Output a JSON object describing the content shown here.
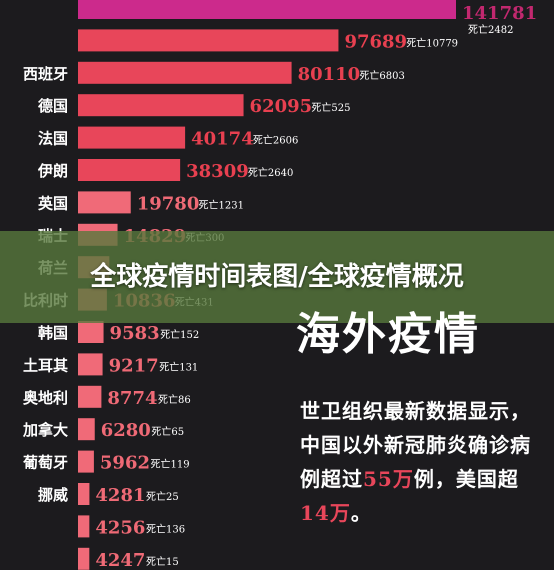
{
  "chart_data": {
    "type": "bar",
    "orientation": "horizontal",
    "categories": [
      "",
      "",
      "西班牙",
      "德国",
      "法国",
      "伊朗",
      "英国",
      "瑞士",
      "荷兰",
      "比利时",
      "韩国",
      "土耳其",
      "奥地利",
      "加拿大",
      "葡萄牙",
      "挪威",
      "",
      ""
    ],
    "values": [
      141781,
      97689,
      80110,
      62095,
      40174,
      38309,
      19780,
      14829,
      11750,
      10836,
      9583,
      9217,
      8774,
      6280,
      5962,
      4281,
      4256,
      4247
    ],
    "value_labels": [
      "141781",
      "97689",
      "80110",
      "62095",
      "40174",
      "38309",
      "19780",
      "14829",
      "",
      "10836",
      "9583",
      "9217",
      "8774",
      "6280",
      "5962",
      "4281",
      "4256",
      "4247"
    ],
    "deaths_labels": [
      "死亡2482",
      "死亡10779",
      "死亡6803",
      "死亡525",
      "死亡2606",
      "死亡2640",
      "死亡1231",
      "死亡300",
      "",
      "死亡431",
      "死亡152",
      "死亡131",
      "死亡86",
      "死亡65",
      "死亡119",
      "死亡25",
      "死亡136",
      "死亡15"
    ],
    "colors": {
      "top_bar": "#cc2a8c",
      "mid_bar": "#e8465a",
      "low_bar": "#f06a78",
      "value_high": "#c2286f",
      "value_mid": "#e84050",
      "value_low": "#ef6a76"
    }
  },
  "overlay": {
    "title": "全球疫情时间表图/全球疫情概况"
  },
  "headline": "海外疫情",
  "body": {
    "line1": "世卫组织最新数据显示，中国以外新冠肺炎确诊病例超过",
    "highlight1": "55万",
    "line2": "例，美国超",
    "highlight2": "14万",
    "line3": "。"
  }
}
